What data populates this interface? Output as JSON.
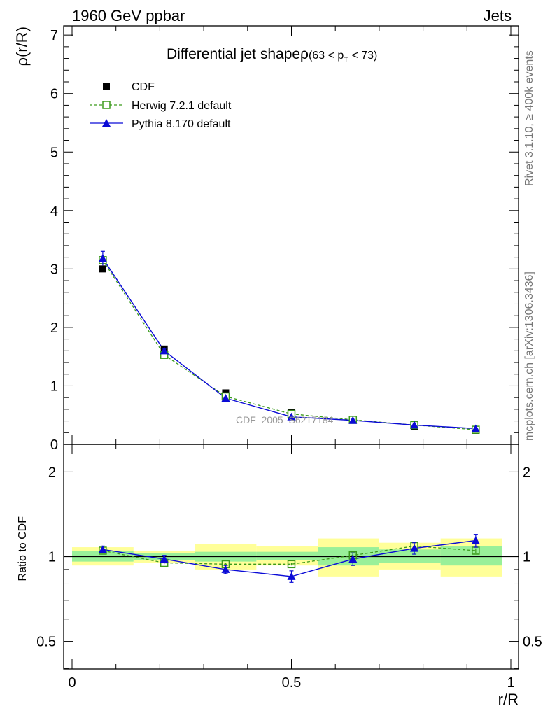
{
  "header": {
    "left": "1960 GeV ppbar",
    "right": "Jets"
  },
  "side_labels": {
    "rivet": "Rivet 3.1.10, ≥ 400k events",
    "mcplots": "mcplots.cern.ch [arXiv:1306.3436]"
  },
  "watermark": "CDF_2005_S6217184",
  "colors": {
    "herwig": "#3a9a1a",
    "pythia": "#0a0ad6",
    "band_inner": "#99f099",
    "band_outer": "#ffff99",
    "data": "#000000"
  },
  "chart_data": [
    {
      "type": "line",
      "title": "Differential jet shapeρ",
      "title_cut": {
        "pre": "(63 < p",
        "sub": "T",
        "post": " < 73)"
      },
      "xlabel": "r/R",
      "ylabel": "ρ(r/R)",
      "xlim": [
        0,
        1
      ],
      "ylim": [
        0,
        7.1
      ],
      "yticks": [
        0,
        1,
        2,
        3,
        4,
        5,
        6,
        7
      ],
      "x": [
        0.07,
        0.21,
        0.35,
        0.5,
        0.64,
        0.78,
        0.92
      ],
      "bin_edges": [
        0,
        0.14,
        0.28,
        0.42,
        0.56,
        0.7,
        0.84,
        0.98
      ],
      "legend_placement": "top-left",
      "series": [
        {
          "name": "CDF",
          "marker": "square-filled",
          "values": [
            3.0,
            1.63,
            0.88,
            0.55,
            0.42,
            0.31,
            0.24
          ]
        },
        {
          "name": "Herwig 7.2.1 default",
          "marker": "square-open",
          "line": "dashed",
          "values": [
            3.15,
            1.53,
            0.82,
            0.52,
            0.42,
            0.33,
            0.25
          ],
          "errors": [
            0.05,
            0.02,
            0.01,
            0.01,
            0.01,
            0.01,
            0.01
          ]
        },
        {
          "name": "Pythia 8.170 default",
          "marker": "triangle",
          "line": "solid",
          "values": [
            3.18,
            1.6,
            0.79,
            0.47,
            0.41,
            0.33,
            0.27
          ],
          "errors": [
            0.12,
            0.04,
            0.02,
            0.02,
            0.02,
            0.01,
            0.01
          ]
        }
      ]
    },
    {
      "type": "line",
      "xlabel": "r/R",
      "ylabel": "Ratio to CDF",
      "xlim": [
        0,
        1
      ],
      "ylim": [
        0.35,
        2.25
      ],
      "yticks": [
        0.5,
        1,
        2
      ],
      "ytick_labels": [
        "0.5",
        "1",
        "2"
      ],
      "xticks": [
        0,
        0.5,
        1
      ],
      "xtick_labels": [
        "0",
        "0.5",
        "1"
      ],
      "x": [
        0.07,
        0.21,
        0.35,
        0.5,
        0.64,
        0.78,
        0.92
      ],
      "bands": {
        "inner": [
          [
            0.96,
            1.05
          ],
          [
            0.97,
            1.03
          ],
          [
            0.96,
            1.04
          ],
          [
            0.97,
            1.04
          ],
          [
            0.93,
            1.08
          ],
          [
            0.95,
            1.06
          ],
          [
            0.93,
            1.09
          ]
        ],
        "outer": [
          [
            0.93,
            1.08
          ],
          [
            0.95,
            1.05
          ],
          [
            0.9,
            1.11
          ],
          [
            0.93,
            1.09
          ],
          [
            0.85,
            1.16
          ],
          [
            0.9,
            1.12
          ],
          [
            0.85,
            1.16
          ]
        ]
      },
      "series": [
        {
          "name": "Herwig 7.2.1 default",
          "values": [
            1.05,
            0.95,
            0.94,
            0.94,
            1.01,
            1.09,
            1.05
          ],
          "errors": [
            0.02,
            0.01,
            0.01,
            0.01,
            0.02,
            0.02,
            0.02
          ]
        },
        {
          "name": "Pythia 8.170 default",
          "values": [
            1.06,
            0.98,
            0.9,
            0.85,
            0.98,
            1.07,
            1.14
          ],
          "errors": [
            0.03,
            0.03,
            0.03,
            0.04,
            0.05,
            0.05,
            0.06
          ]
        }
      ]
    }
  ]
}
